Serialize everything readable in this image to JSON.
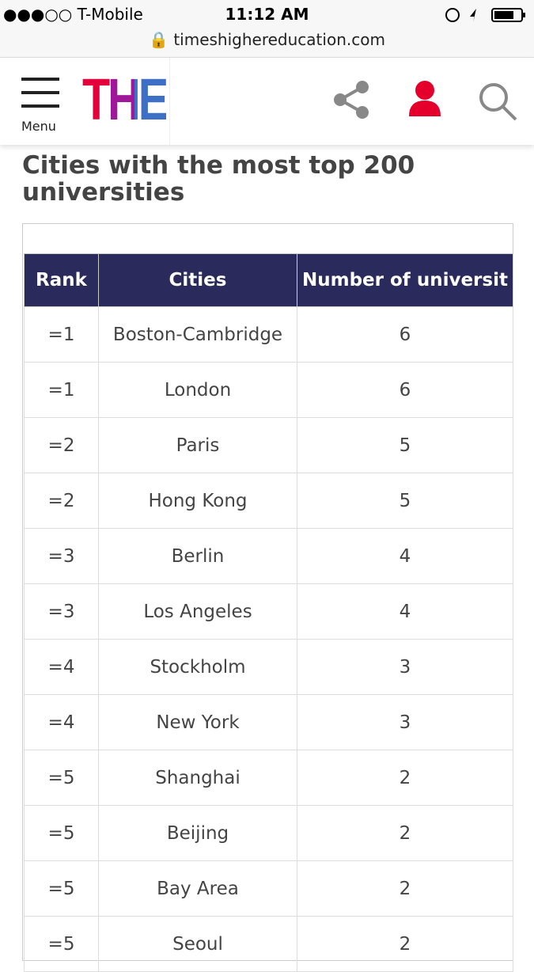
{
  "status_bar": {
    "carrier": "T-Mobile",
    "time": "11:12 AM",
    "url": "timeshighereducation.com"
  },
  "header": {
    "menu": "Menu",
    "logo": "THE"
  },
  "title": "Cities with the most top 200 universities",
  "table": {
    "columns": [
      "Rank",
      "Cities",
      "Number of universit"
    ],
    "rows": [
      [
        "=1",
        "Boston-Cambridge",
        6
      ],
      [
        "=1",
        "London",
        6
      ],
      [
        "=2",
        "Paris",
        5
      ],
      [
        "=2",
        "Hong Kong",
        5
      ],
      [
        "=3",
        "Berlin",
        4
      ],
      [
        "=3",
        "Los Angeles",
        4
      ],
      [
        "=4",
        "Stockholm",
        3
      ],
      [
        "=4",
        "New York",
        3
      ],
      [
        "=5",
        "Shanghai",
        2
      ],
      [
        "=5",
        "Beijing",
        2
      ],
      [
        "=5",
        "Bay Area",
        2
      ],
      [
        "=5",
        "Seoul",
        2
      ]
    ]
  }
}
